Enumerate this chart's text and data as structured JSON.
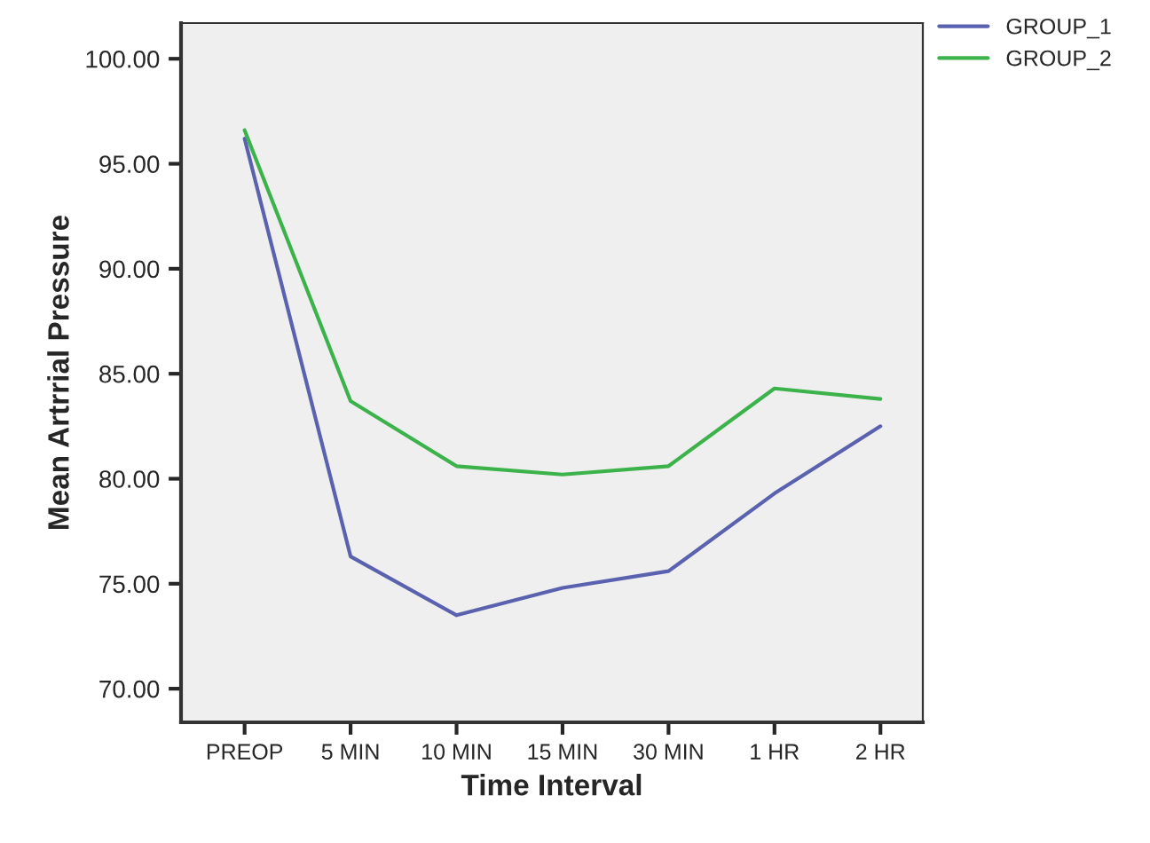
{
  "chart_data": {
    "type": "line",
    "xlabel": "Time Interval",
    "ylabel": "Mean Artrrial Pressure",
    "categories": [
      "PREOP",
      "5 MIN",
      "10 MIN",
      "15 MIN",
      "30 MIN",
      "1 HR",
      "2 HR"
    ],
    "series": [
      {
        "name": "GROUP_1",
        "color": "#5a62b0",
        "values": [
          96.2,
          76.3,
          73.5,
          74.8,
          75.6,
          79.3,
          82.5
        ]
      },
      {
        "name": "GROUP_2",
        "color": "#3cb34a",
        "values": [
          96.6,
          83.7,
          80.6,
          80.2,
          80.6,
          84.3,
          83.8
        ]
      }
    ],
    "ylim": [
      68.4,
      101.7
    ],
    "yticks": [
      {
        "value": 70,
        "label": "70.00"
      },
      {
        "value": 75,
        "label": "75.00"
      },
      {
        "value": 80,
        "label": "80.00"
      },
      {
        "value": 85,
        "label": "85.00"
      },
      {
        "value": 90,
        "label": "90.00"
      },
      {
        "value": 95,
        "label": "95.00"
      },
      {
        "value": 100,
        "label": "100.00"
      }
    ],
    "legend": "top right",
    "grid": false,
    "marker": "none",
    "line_style": "solid"
  }
}
